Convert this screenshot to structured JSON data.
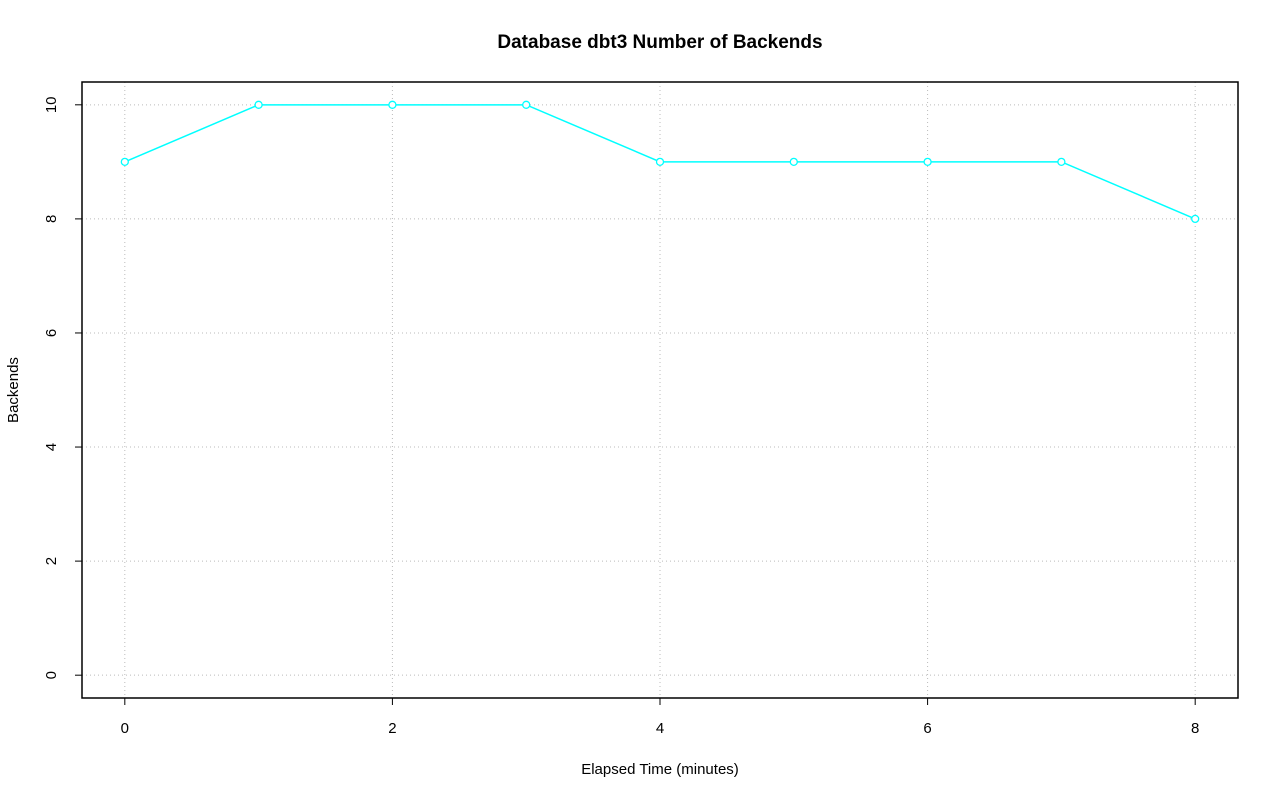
{
  "chart_data": {
    "type": "line",
    "title": "Database dbt3 Number of Backends",
    "x_label": "Elapsed Time (minutes)",
    "y_label": "Backends",
    "x": [
      0,
      1,
      2,
      3,
      4,
      5,
      6,
      7,
      8
    ],
    "series": [
      {
        "color": "#00ffff",
        "values": [
          9,
          10,
          10,
          10,
          9,
          9,
          9,
          9,
          8
        ]
      }
    ],
    "xlim": [
      -0.32,
      8.32
    ],
    "xticks": [
      0,
      2,
      4,
      6,
      8
    ],
    "ylim": [
      -0.4,
      10.4
    ],
    "yticks": [
      0,
      2,
      4,
      6,
      8,
      10
    ],
    "grid": true
  }
}
